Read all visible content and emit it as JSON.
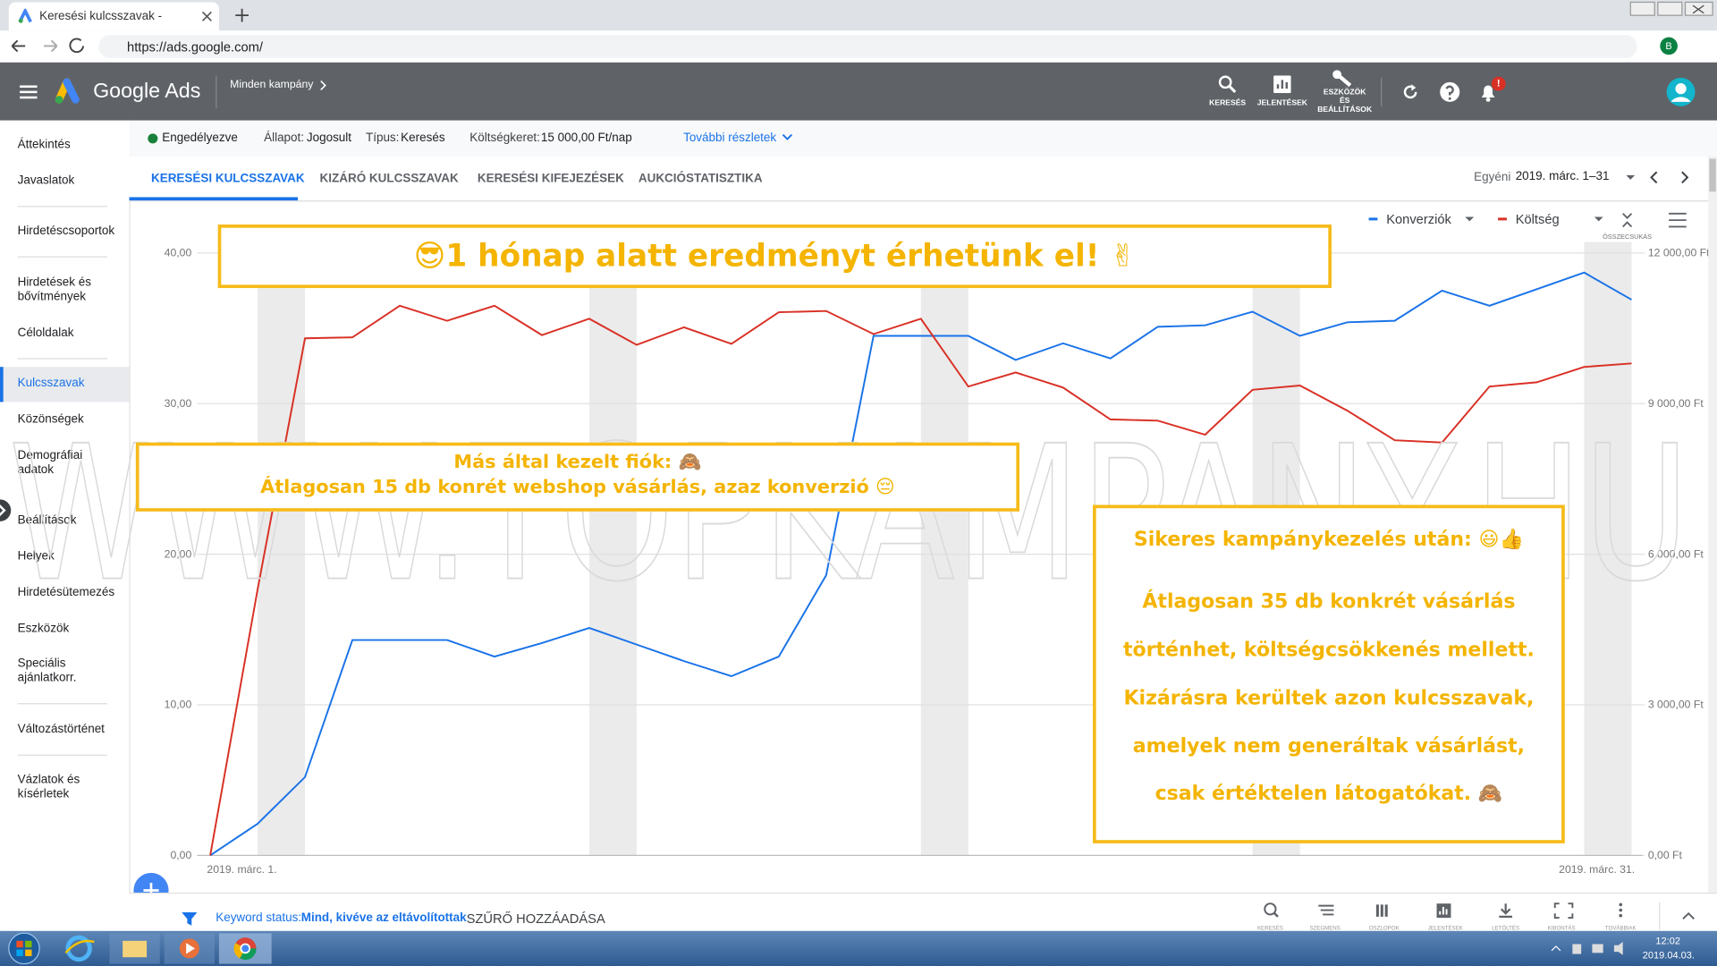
{
  "browser": {
    "tab_title": "Keresési kulcsszavak -",
    "url": "https://ads.google.com/",
    "profile": "B"
  },
  "header": {
    "product": "Google Ads",
    "breadcrumb": "Minden kampány",
    "tools": [
      "KERESÉS",
      "JELENTÉSEK",
      "ESZKÖZÖK ÉS BEÁLLÍTÁSOK"
    ],
    "notification_badge": "!"
  },
  "sidebar": [
    "Áttekintés",
    "Javaslatok",
    "Hirdetéscsoportok",
    "Hirdetések és bővítmények",
    "Céloldalak",
    "Kulcsszavak",
    "Közönségek",
    "Demográfiai adatok",
    "Beállítások",
    "Helyek",
    "Hirdetésütemezés",
    "Eszközök",
    "Speciális ajánlatkorr.",
    "Változástörténet",
    "Vázlatok és kísérletek"
  ],
  "status": {
    "state": "Engedélyezve",
    "status_label": "Állapot:",
    "status_value": "Jogosult",
    "type_label": "Típus:",
    "type_value": "Keresés",
    "budget_label": "Költségkeret:",
    "budget_value": "15 000,00 Ft/nap",
    "details": "További részletek"
  },
  "tabs": [
    "KERESÉSI KULCSSZAVAK",
    "KIZÁRÓ KULCSSZAVAK",
    "KERESÉSI KIFEJEZÉSEK",
    "AUKCIÓSTATISZTIKA"
  ],
  "date": {
    "label": "Egyéni",
    "range": "2019. márc. 1–31"
  },
  "chart_data": {
    "type": "line",
    "collapse_label": "ÖSSZECSUKÁS",
    "categories": [
      "2019. márc. 1.",
      null,
      null,
      null,
      null,
      null,
      null,
      null,
      null,
      null,
      null,
      null,
      null,
      null,
      null,
      null,
      null,
      null,
      null,
      null,
      null,
      null,
      null,
      null,
      null,
      null,
      null,
      null,
      null,
      null,
      "2019. márc. 31."
    ],
    "series": [
      {
        "name": "Konverziók",
        "color": "#1a73e8",
        "values": [
          0,
          2.1,
          5.2,
          14.3,
          14.3,
          14.3,
          13.2,
          14.1,
          15.1,
          14.0,
          12.9,
          11.9,
          13.2,
          18.6,
          34.5,
          34.5,
          34.5,
          32.9,
          34.0,
          33.0,
          35.1,
          35.2,
          36.1,
          34.5,
          35.4,
          35.5,
          37.5,
          36.5,
          37.6,
          38.7,
          36.9
        ]
      },
      {
        "name": "Költség",
        "color": "#d93025",
        "axis": "y2",
        "values": [
          0,
          5300,
          10300,
          10320,
          10950,
          10650,
          10950,
          10365,
          10690,
          10170,
          10520,
          10190,
          10820,
          10845,
          10385,
          10690,
          9340,
          9620,
          9320,
          8685,
          8660,
          8380,
          9275,
          9360,
          8860,
          8270,
          8225,
          9340,
          9425,
          9730,
          9800
        ]
      }
    ],
    "ylim": [
      0,
      40
    ],
    "yticks": [
      {
        "value": 0,
        "label": "0,00"
      },
      {
        "value": 10,
        "label": "10,00"
      },
      {
        "value": 20,
        "label": "20,00"
      },
      {
        "value": 30,
        "label": "30,00"
      },
      {
        "value": 40,
        "label": "40,00"
      }
    ],
    "y2lim": [
      0,
      12000
    ],
    "y2ticks": [
      {
        "value": 0,
        "label": "0,00 Ft"
      },
      {
        "value": 3000,
        "label": "3 000,00 Ft"
      },
      {
        "value": 6000,
        "label": "6 000,00 Ft"
      },
      {
        "value": 9000,
        "label": "9 000,00 Ft"
      },
      {
        "value": 12000,
        "label": "12 000,00 Ft"
      }
    ],
    "grid": true
  },
  "overlays": {
    "headline": "😎1 hónap alatt eredményt érhetünk el! ✌",
    "before": [
      "Más által kezelt fiók: 🙈",
      "Átlagosan 15 db konrét webshop vásárlás, azaz konverzió 😔"
    ],
    "after": [
      "Sikeres kampánykezelés után: 😃👍",
      "Átlagosan 35 db konkrét vásárlás",
      "történhet, költségcsökkenés mellett.",
      "Kizárásra kerültek azon kulcsszavak,",
      "amelyek nem generáltak vásárlást,",
      "csak értéktelen látogatókat. 🙈"
    ]
  },
  "watermark": "WWW.TOPKAMPANY.HU",
  "filter": {
    "label": "Keyword status:",
    "value": "Mind, kivéve az eltávolítottak",
    "add": "SZŰRŐ HOZZÁADÁSA",
    "tools": [
      "KERESÉS",
      "SZEGMENS",
      "OSZLOPOK",
      "JELENTÉSEK",
      "LETÖLTÉS",
      "KIBONTÁS",
      "TOVÁBBIAK"
    ]
  },
  "taskbar": {
    "time": "12:02",
    "date": "2019.04.03."
  }
}
